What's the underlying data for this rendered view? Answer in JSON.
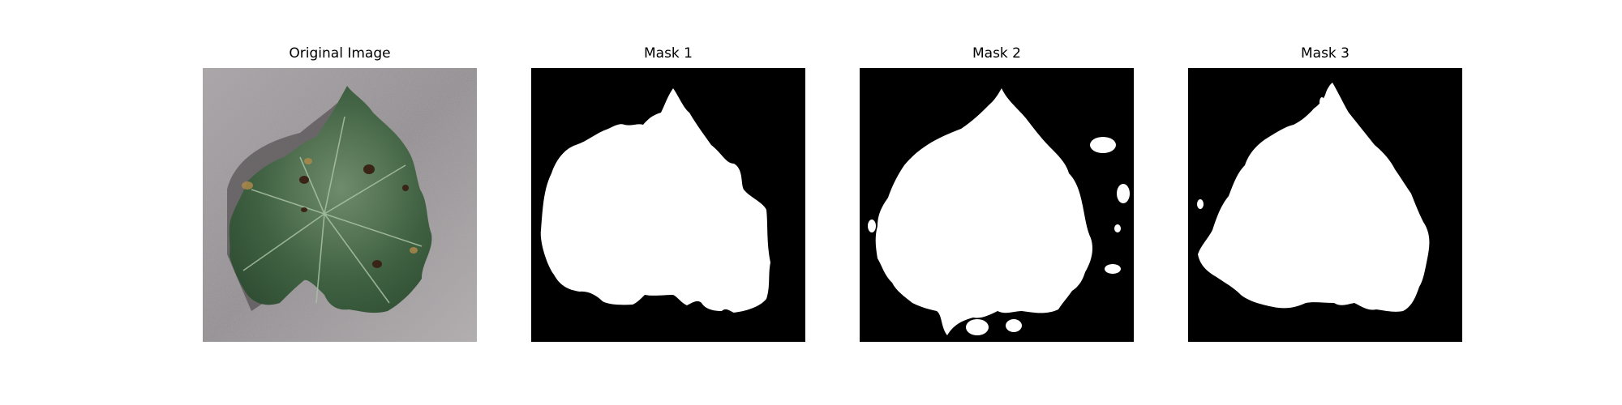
{
  "figure": {
    "background": "#ffffff",
    "panels": [
      {
        "id": "original",
        "title": "Original Image",
        "kind": "photo-leaf"
      },
      {
        "id": "mask1",
        "title": "Mask 1",
        "kind": "binary-mask",
        "fg": "#ffffff",
        "bg": "#000000"
      },
      {
        "id": "mask2",
        "title": "Mask 2",
        "kind": "binary-mask",
        "fg": "#ffffff",
        "bg": "#000000"
      },
      {
        "id": "mask3",
        "title": "Mask 3",
        "kind": "binary-mask",
        "fg": "#ffffff",
        "bg": "#000000"
      }
    ]
  }
}
